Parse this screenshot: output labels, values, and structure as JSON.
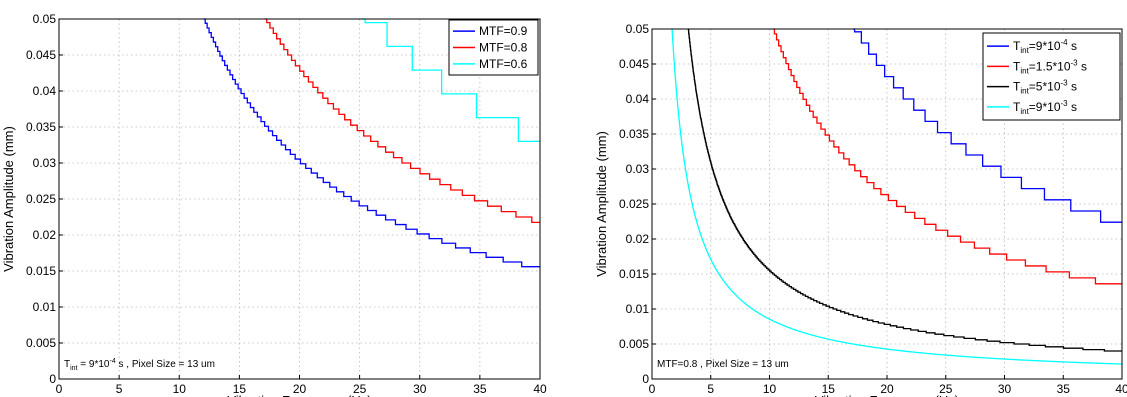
{
  "chart_data": [
    {
      "type": "line",
      "title": "",
      "xlabel": "Vibration Frequency (Hz)",
      "ylabel": "Vibration Amplitude (mm)",
      "xlim": [
        0,
        40
      ],
      "ylim": [
        0,
        0.05
      ],
      "xticks": [
        "0",
        "5",
        "10",
        "15",
        "20",
        "25",
        "30",
        "35",
        "40"
      ],
      "yticks": [
        "0",
        "0.005",
        "0.01",
        "0.015",
        "0.02",
        "0.025",
        "0.03",
        "0.035",
        "0.04",
        "0.045",
        "0.05"
      ],
      "grid": true,
      "legend_position": "top-right",
      "annotation": {
        "sym": "T",
        "sub": "int",
        "mid": " = 9*10",
        "sup": "-4",
        "rest": " s , Pixel Size = 13 um"
      },
      "series": [
        {
          "name": "MTF=0.9",
          "color": "#0000ff",
          "shape": "stair",
          "k": 0.6,
          "step": 0.00065
        },
        {
          "name": "MTF=0.8",
          "color": "#ff0000",
          "shape": "stair",
          "k": 0.855,
          "step": 0.00075
        },
        {
          "name": "MTF=0.6",
          "color": "#00ffff",
          "shape": "stair",
          "k": 1.26,
          "step": 0.0033
        }
      ]
    },
    {
      "type": "line",
      "title": "",
      "xlabel": "Vibration Frequency (Hz)",
      "ylabel": "Vibration Amplitude (mm)",
      "xlim": [
        0,
        40
      ],
      "ylim": [
        0,
        0.05
      ],
      "xticks": [
        "0",
        "5",
        "10",
        "15",
        "20",
        "25",
        "30",
        "35",
        "40"
      ],
      "yticks": [
        "0",
        "0.005",
        "0.01",
        "0.015",
        "0.02",
        "0.025",
        "0.03",
        "0.035",
        "0.04",
        "0.045",
        "0.05"
      ],
      "grid": true,
      "legend_position": "top-right",
      "annotation": {
        "sym": "",
        "sub": "",
        "mid": "MTF=0.8 , Pixel Size = 13 um",
        "sup": "",
        "rest": ""
      },
      "series": [
        {
          "name": "9*10",
          "sup": "-4",
          "unit": " s",
          "sym": "T",
          "sub": "int",
          "color": "#0000ff",
          "shape": "stair",
          "k": 0.855,
          "step": 0.0016
        },
        {
          "name": "1.5*10",
          "sup": "-3",
          "unit": " s",
          "sym": "T",
          "sub": "int",
          "color": "#ff0000",
          "shape": "stair",
          "k": 0.513,
          "step": 0.00085
        },
        {
          "name": "5*10",
          "sup": "-3",
          "unit": " s",
          "sym": "T",
          "sub": "int",
          "color": "#000000",
          "shape": "stair",
          "k": 0.154,
          "step": 0.0002
        },
        {
          "name": "9*10",
          "sup": "-3",
          "unit": " s",
          "sym": "T",
          "sub": "int",
          "color": "#00ffff",
          "shape": "smooth",
          "k": 0.0855,
          "step": 0
        }
      ]
    }
  ]
}
